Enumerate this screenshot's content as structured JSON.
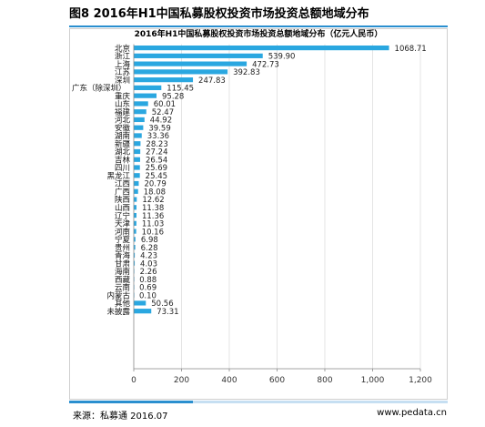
{
  "figure": {
    "title": "图8 2016年H1中国私募股权投资市场投资总额地域分布",
    "source": "来源：私募通 2016.07",
    "website": "www.pedata.cn"
  },
  "colors": {
    "bar": "#2aa7e0",
    "accent": "#2a8fcf",
    "accent_light": "#c6dff2",
    "grid": "#dddddd"
  },
  "chart_data": {
    "type": "bar",
    "orientation": "horizontal",
    "title": "2016年H1中国私募股权投资市场投资总额地域分布（亿元人民币）",
    "categories": [
      "北京",
      "浙江",
      "上海",
      "江苏",
      "深圳",
      "广东（除深圳）",
      "重庆",
      "山东",
      "福建",
      "河北",
      "安徽",
      "湖南",
      "新疆",
      "湖北",
      "吉林",
      "四川",
      "黑龙江",
      "江西",
      "广西",
      "陕西",
      "山西",
      "辽宁",
      "天津",
      "河南",
      "宁夏",
      "贵州",
      "青海",
      "甘肃",
      "海南",
      "西藏",
      "云南",
      "内蒙古",
      "其他",
      "未披露"
    ],
    "values": [
      1068.71,
      539.9,
      472.73,
      392.83,
      247.83,
      115.45,
      95.28,
      60.01,
      52.47,
      44.92,
      39.59,
      33.36,
      28.23,
      27.24,
      26.54,
      25.69,
      25.45,
      20.79,
      18.08,
      12.62,
      11.38,
      11.36,
      11.03,
      10.16,
      6.98,
      6.28,
      4.23,
      4.03,
      2.26,
      0.88,
      0.69,
      0.1,
      50.56,
      73.31
    ],
    "value_labels": [
      "1068.71",
      "539.90",
      "472.73",
      "392.83",
      "247.83",
      "115.45",
      "95.28",
      "60.01",
      "52.47",
      "44.92",
      "39.59",
      "33.36",
      "28.23",
      "27.24",
      "26.54",
      "25.69",
      "25.45",
      "20.79",
      "18.08",
      "12.62",
      "11.38",
      "11.36",
      "11.03",
      "10.16",
      "6.98",
      "6.28",
      "4.23",
      "4.03",
      "2.26",
      "0.88",
      "0.69",
      "0.10",
      "50.56",
      "73.31"
    ],
    "xlim": [
      0,
      1200
    ],
    "ticks": [
      0,
      200,
      400,
      600,
      800,
      1000,
      1200
    ],
    "tick_labels": [
      "0",
      "200",
      "400",
      "600",
      "800",
      "1,000",
      "1,200"
    ],
    "grid": true,
    "legend": "none"
  }
}
